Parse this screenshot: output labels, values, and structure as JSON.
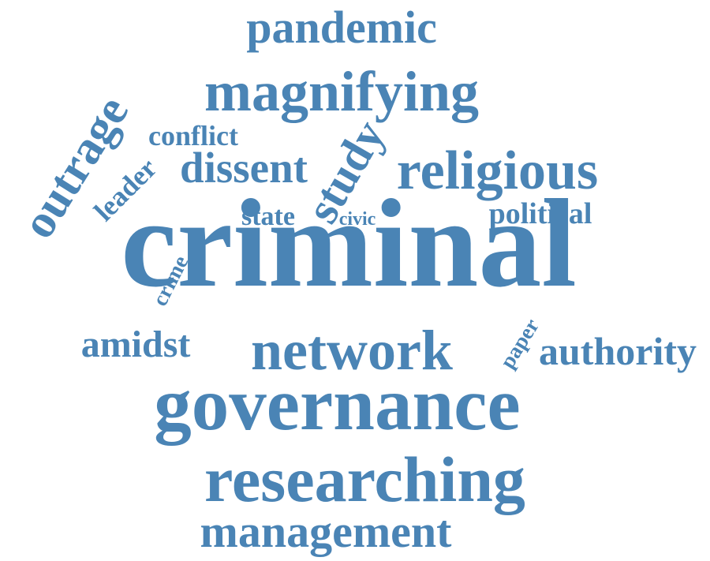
{
  "word_cloud": {
    "color": "#4a84b5",
    "words": [
      {
        "text": "pandemic",
        "rank": 6
      },
      {
        "text": "magnifying",
        "rank": 4
      },
      {
        "text": "outrage",
        "rank": 10
      },
      {
        "text": "conflict",
        "rank": 15
      },
      {
        "text": "dissent",
        "rank": 9
      },
      {
        "text": "study",
        "rank": 11
      },
      {
        "text": "religious",
        "rank": 7
      },
      {
        "text": "leader",
        "rank": 16
      },
      {
        "text": "state",
        "rank": 17
      },
      {
        "text": "civic",
        "rank": 19
      },
      {
        "text": "political",
        "rank": 13
      },
      {
        "text": "criminal",
        "rank": 1
      },
      {
        "text": "crime",
        "rank": 18
      },
      {
        "text": "amidst",
        "rank": 12
      },
      {
        "text": "network",
        "rank": 5
      },
      {
        "text": "paper",
        "rank": 20
      },
      {
        "text": "authority",
        "rank": 14
      },
      {
        "text": "governance",
        "rank": 2
      },
      {
        "text": "researching",
        "rank": 3
      },
      {
        "text": "management",
        "rank": 8
      }
    ]
  }
}
